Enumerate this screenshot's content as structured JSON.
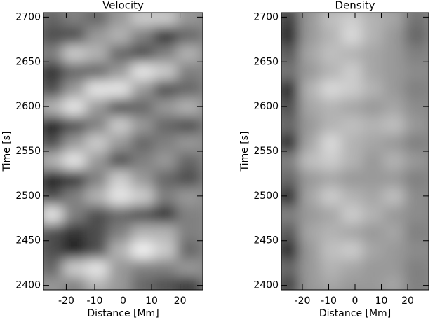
{
  "chart_data": [
    {
      "type": "heatmap",
      "title": "Velocity",
      "xlabel": "Distance [Mm]",
      "ylabel": "Time [s]",
      "x": [
        -25,
        -17,
        -9,
        -1,
        7,
        15,
        23
      ],
      "y": [
        2400,
        2420,
        2440,
        2460,
        2480,
        2500,
        2520,
        2540,
        2560,
        2580,
        2600,
        2620,
        2640,
        2660,
        2680,
        2700
      ],
      "values": [
        [
          0.6,
          0.5,
          0.7,
          0.6,
          0.4,
          0.3,
          0.2
        ],
        [
          0.4,
          0.8,
          0.9,
          0.6,
          0.5,
          0.5,
          0.6
        ],
        [
          0.3,
          0.1,
          0.3,
          0.7,
          0.95,
          0.8,
          0.4
        ],
        [
          0.3,
          0.2,
          0.3,
          0.5,
          0.7,
          0.7,
          0.5
        ],
        [
          0.9,
          0.5,
          0.3,
          0.4,
          0.3,
          0.2,
          0.5
        ],
        [
          0.3,
          0.5,
          0.7,
          0.9,
          0.8,
          0.5,
          0.6
        ],
        [
          0.1,
          0.2,
          0.5,
          0.8,
          0.6,
          0.4,
          0.3
        ],
        [
          0.7,
          0.9,
          0.6,
          0.3,
          0.5,
          0.6,
          0.4
        ],
        [
          0.3,
          0.6,
          0.8,
          0.6,
          0.4,
          0.5,
          0.6
        ],
        [
          0.1,
          0.3,
          0.5,
          0.8,
          0.6,
          0.4,
          0.3
        ],
        [
          0.7,
          0.9,
          0.6,
          0.3,
          0.4,
          0.6,
          0.7
        ],
        [
          0.3,
          0.6,
          0.9,
          0.9,
          0.6,
          0.3,
          0.4
        ],
        [
          0.2,
          0.4,
          0.4,
          0.6,
          0.9,
          0.8,
          0.5
        ],
        [
          0.5,
          0.8,
          0.7,
          0.4,
          0.3,
          0.5,
          0.7
        ],
        [
          0.3,
          0.3,
          0.6,
          0.7,
          0.5,
          0.2,
          0.4
        ],
        [
          0.4,
          0.5,
          0.4,
          0.6,
          0.8,
          0.8,
          0.6
        ]
      ],
      "xlim": [
        -28,
        28
      ],
      "ylim": [
        2395,
        2705
      ],
      "xticks": [
        -20,
        -10,
        0,
        10,
        20
      ],
      "yticks": [
        2400,
        2450,
        2500,
        2550,
        2600,
        2650,
        2700
      ]
    },
    {
      "type": "heatmap",
      "title": "Density",
      "xlabel": "Distance [Mm]",
      "ylabel": "Time [s]",
      "x": [
        -25,
        -17,
        -9,
        -1,
        7,
        15,
        23
      ],
      "y": [
        2400,
        2420,
        2440,
        2460,
        2480,
        2500,
        2520,
        2540,
        2560,
        2580,
        2600,
        2620,
        2640,
        2660,
        2680,
        2700
      ],
      "values": [
        [
          0.25,
          0.6,
          0.65,
          0.6,
          0.6,
          0.65,
          0.5
        ],
        [
          0.4,
          0.6,
          0.7,
          0.65,
          0.6,
          0.6,
          0.5
        ],
        [
          0.15,
          0.6,
          0.75,
          0.8,
          0.65,
          0.6,
          0.55
        ],
        [
          0.35,
          0.65,
          0.7,
          0.65,
          0.6,
          0.65,
          0.5
        ],
        [
          0.5,
          0.6,
          0.65,
          0.8,
          0.7,
          0.6,
          0.55
        ],
        [
          0.15,
          0.65,
          0.8,
          0.7,
          0.65,
          0.75,
          0.55
        ],
        [
          0.4,
          0.6,
          0.65,
          0.6,
          0.6,
          0.6,
          0.5
        ],
        [
          0.5,
          0.75,
          0.8,
          0.7,
          0.6,
          0.7,
          0.6
        ],
        [
          0.15,
          0.65,
          0.85,
          0.7,
          0.65,
          0.6,
          0.5
        ],
        [
          0.4,
          0.6,
          0.7,
          0.75,
          0.7,
          0.75,
          0.6
        ],
        [
          0.3,
          0.65,
          0.7,
          0.65,
          0.6,
          0.65,
          0.55
        ],
        [
          0.15,
          0.7,
          0.85,
          0.8,
          0.7,
          0.6,
          0.5
        ],
        [
          0.45,
          0.6,
          0.7,
          0.8,
          0.65,
          0.6,
          0.55
        ],
        [
          0.35,
          0.65,
          0.75,
          0.7,
          0.65,
          0.6,
          0.5
        ],
        [
          0.15,
          0.6,
          0.7,
          0.85,
          0.7,
          0.6,
          0.4
        ],
        [
          0.25,
          0.6,
          0.75,
          0.8,
          0.7,
          0.65,
          0.45
        ]
      ],
      "xlim": [
        -28,
        28
      ],
      "ylim": [
        2395,
        2705
      ],
      "xticks": [
        -20,
        -10,
        0,
        10,
        20
      ],
      "yticks": [
        2400,
        2450,
        2500,
        2550,
        2600,
        2650,
        2700
      ]
    }
  ]
}
